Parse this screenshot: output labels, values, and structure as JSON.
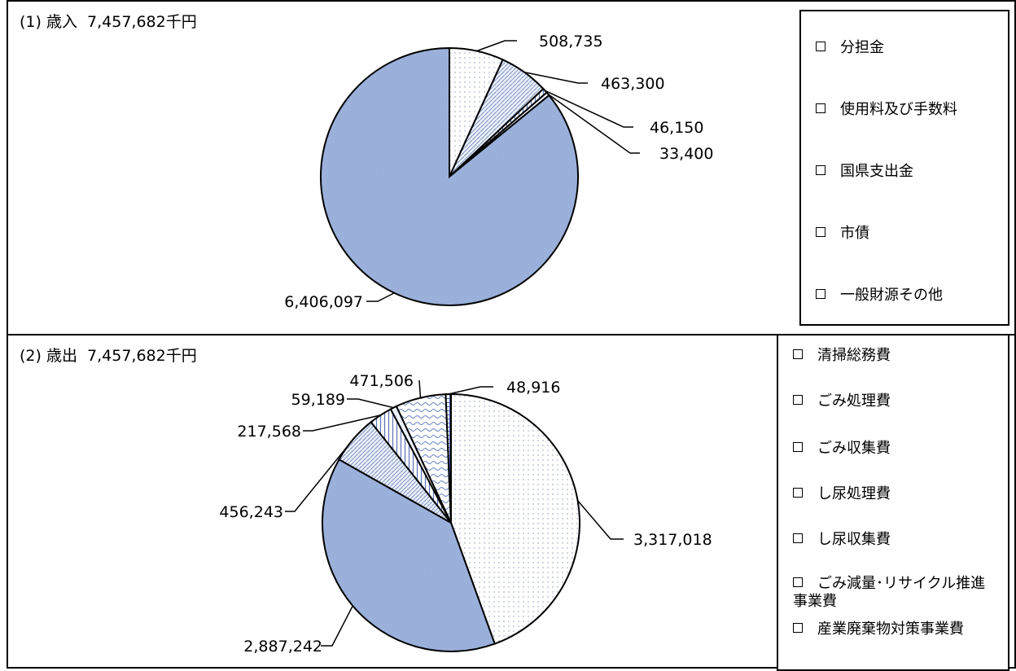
{
  "panels": [
    {
      "title": "(1) 歳入",
      "total": "7,457,682千円",
      "legend": [
        {
          "label": "分担金",
          "pattern": "dots"
        },
        {
          "label": "使用料及び手数料",
          "pattern": "diag"
        },
        {
          "label": "国県支出金",
          "pattern": "vert"
        },
        {
          "label": "市債",
          "pattern": "light"
        },
        {
          "label": "一般財源その他",
          "pattern": "blue"
        }
      ]
    },
    {
      "title": "(2) 歳出",
      "total": "7,457,682千円",
      "legend": [
        {
          "label": "清掃総務費",
          "pattern": "dots"
        },
        {
          "label": "ごみ処理費",
          "pattern": "blue"
        },
        {
          "label": "ごみ収集費",
          "pattern": "diag"
        },
        {
          "label": "し尿処理費",
          "pattern": "vert"
        },
        {
          "label": "し尿収集費",
          "pattern": "light"
        },
        {
          "label": "ごみ減量･リサイクル推進事業費",
          "pattern": "wave"
        },
        {
          "label": "産業廃棄物対策事業費",
          "pattern": "grid"
        }
      ]
    }
  ],
  "chart_data": [
    {
      "type": "pie",
      "title": "(1) 歳入 7,457,682千円",
      "categories": [
        "分担金",
        "使用料及び手数料",
        "国県支出金",
        "市債",
        "一般財源その他"
      ],
      "values": [
        508735,
        463300,
        46150,
        33400,
        6406097
      ],
      "value_labels": [
        "508,735",
        "463,300",
        "46,150",
        "33,400",
        "6,406,097"
      ],
      "legend": "right"
    },
    {
      "type": "pie",
      "title": "(2) 歳出 7,457,682千円",
      "categories": [
        "清掃総務費",
        "ごみ処理費",
        "ごみ収集費",
        "し尿処理費",
        "し尿収集費",
        "ごみ減量･リサイクル推進事業費",
        "産業廃棄物対策事業費"
      ],
      "values": [
        3317018,
        2887242,
        456243,
        217568,
        59189,
        471506,
        48916
      ],
      "value_labels": [
        "3,317,018",
        "2,887,242",
        "456,243",
        "217,568",
        "59,189",
        "471,506",
        "48,916"
      ],
      "legend": "right"
    }
  ],
  "colors": {
    "blue_fill": "#9db3dc",
    "light_fill": "#eef2fa",
    "line": "#000000"
  }
}
